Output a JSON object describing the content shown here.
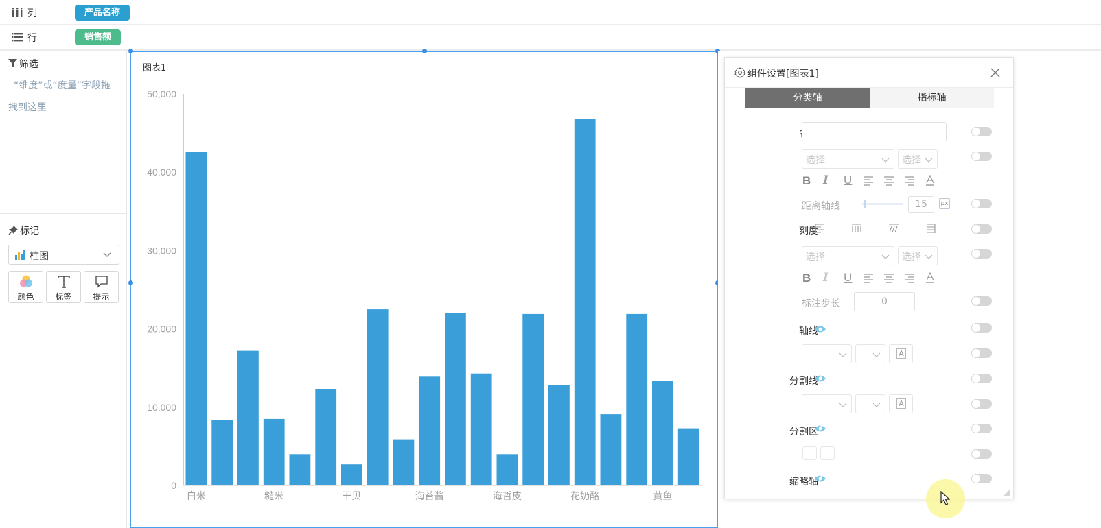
{
  "shelf": {
    "columns": {
      "label": "列",
      "pill": "产品名称"
    },
    "rows": {
      "label": "行",
      "pill": "销售额"
    }
  },
  "sidebar": {
    "filter": {
      "title": "筛选",
      "hint": "“维度”或“度量”字段拖拽到这里"
    },
    "marks": {
      "title": "标记",
      "chart_type": "柱图",
      "buttons": [
        {
          "label": "颜色",
          "icon": "color-circles-icon"
        },
        {
          "label": "标签",
          "icon": "text-T-icon"
        },
        {
          "label": "提示",
          "icon": "tooltip-bubble-icon"
        }
      ]
    }
  },
  "chart_panel": {
    "title": "图表1"
  },
  "chart_data": {
    "type": "bar",
    "title": "",
    "xlabel": "",
    "ylabel": "",
    "ylim": [
      0,
      50000
    ],
    "yticks": [
      0,
      10000,
      20000,
      30000,
      40000,
      50000
    ],
    "ytick_labels": [
      "0",
      "10,000",
      "20,000",
      "30,000",
      "40,000",
      "50,000"
    ],
    "visible_category_labels": [
      "白米",
      "糙米",
      "干贝",
      "海苔酱",
      "海哲皮",
      "花奶酪",
      "黄鱼"
    ],
    "visible_label_indices": [
      0,
      3,
      6,
      9,
      12,
      15,
      18
    ],
    "values": [
      42600,
      8400,
      17200,
      8500,
      4000,
      12300,
      2700,
      22500,
      5900,
      13900,
      22000,
      14300,
      4000,
      21900,
      12800,
      46800,
      9100,
      21900,
      13400,
      7300
    ],
    "bar_color": "#3a9fd8",
    "grid": false
  },
  "dialog": {
    "title": "组件设置[图表1]",
    "tabs": {
      "active": "分类轴",
      "inactive": "指标轴"
    },
    "labels": {
      "name": "名称",
      "ticks": "刻度",
      "axis_line": "轴线",
      "split_line": "分割线",
      "split_area": "分割区",
      "zoom_axis": "缩略轴"
    },
    "select_placeholder": "选择",
    "distance_label": "距离轴线",
    "distance_value": "15",
    "px_unit": "px",
    "step_label": "标注步长",
    "step_value": "0",
    "a_glyph": "A"
  }
}
